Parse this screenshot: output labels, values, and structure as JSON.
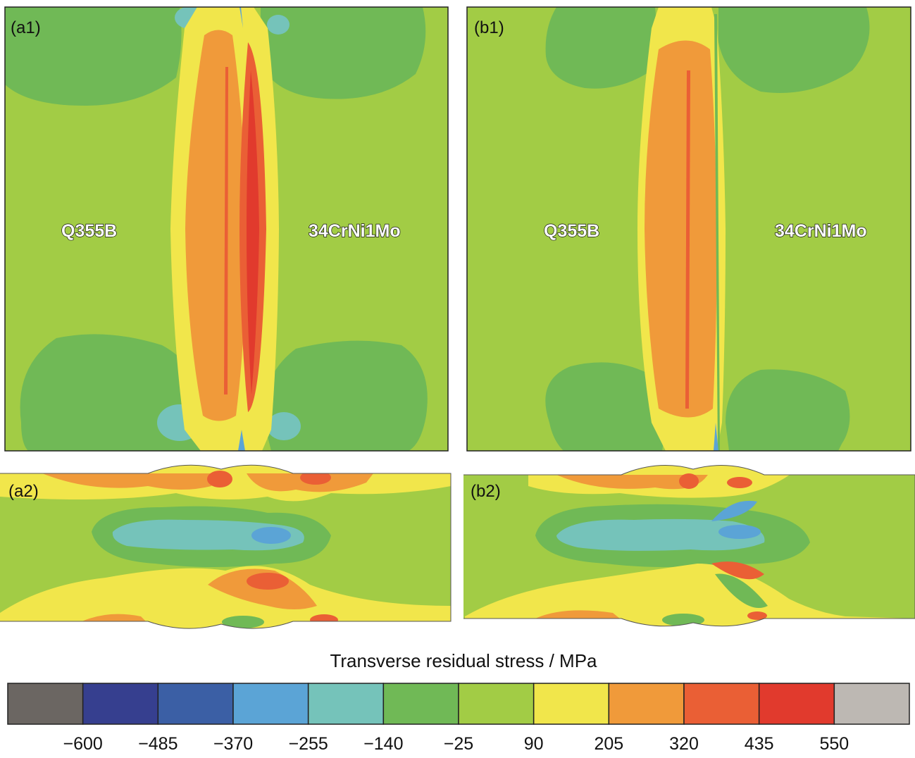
{
  "colors": {
    "c_m600": "#6b6662",
    "c_m485": "#363f8f",
    "c_m370": "#3b5fa5",
    "c_m255": "#5ba4d6",
    "c_m140": "#75c3ba",
    "c_m25": "#70b956",
    "c_90": "#a2cc45",
    "c_205": "#f1e64b",
    "c_320": "#f09a3a",
    "c_435": "#ea5f35",
    "c_550": "#e13a2d",
    "c_top": "#bdb8b3"
  },
  "panels": {
    "a1": {
      "label": "(a1)",
      "left_material": "Q355B",
      "right_material": "34CrNi1Mo"
    },
    "b1": {
      "label": "(b1)",
      "left_material": "Q355B",
      "right_material": "34CrNi1Mo"
    },
    "a2": {
      "label": "(a2)"
    },
    "b2": {
      "label": "(b2)"
    }
  },
  "colorbar": {
    "title": "Transverse residual stress / MPa",
    "segment_colors": [
      "#6b6662",
      "#363f8f",
      "#3b5fa5",
      "#5ba4d6",
      "#75c3ba",
      "#70b956",
      "#a2cc45",
      "#f1e64b",
      "#f09a3a",
      "#ea5f35",
      "#e13a2d",
      "#bdb8b3"
    ],
    "ticks": [
      "−600",
      "−485",
      "−370",
      "−255",
      "−140",
      "−25",
      "90",
      "205",
      "320",
      "435",
      "550"
    ]
  }
}
